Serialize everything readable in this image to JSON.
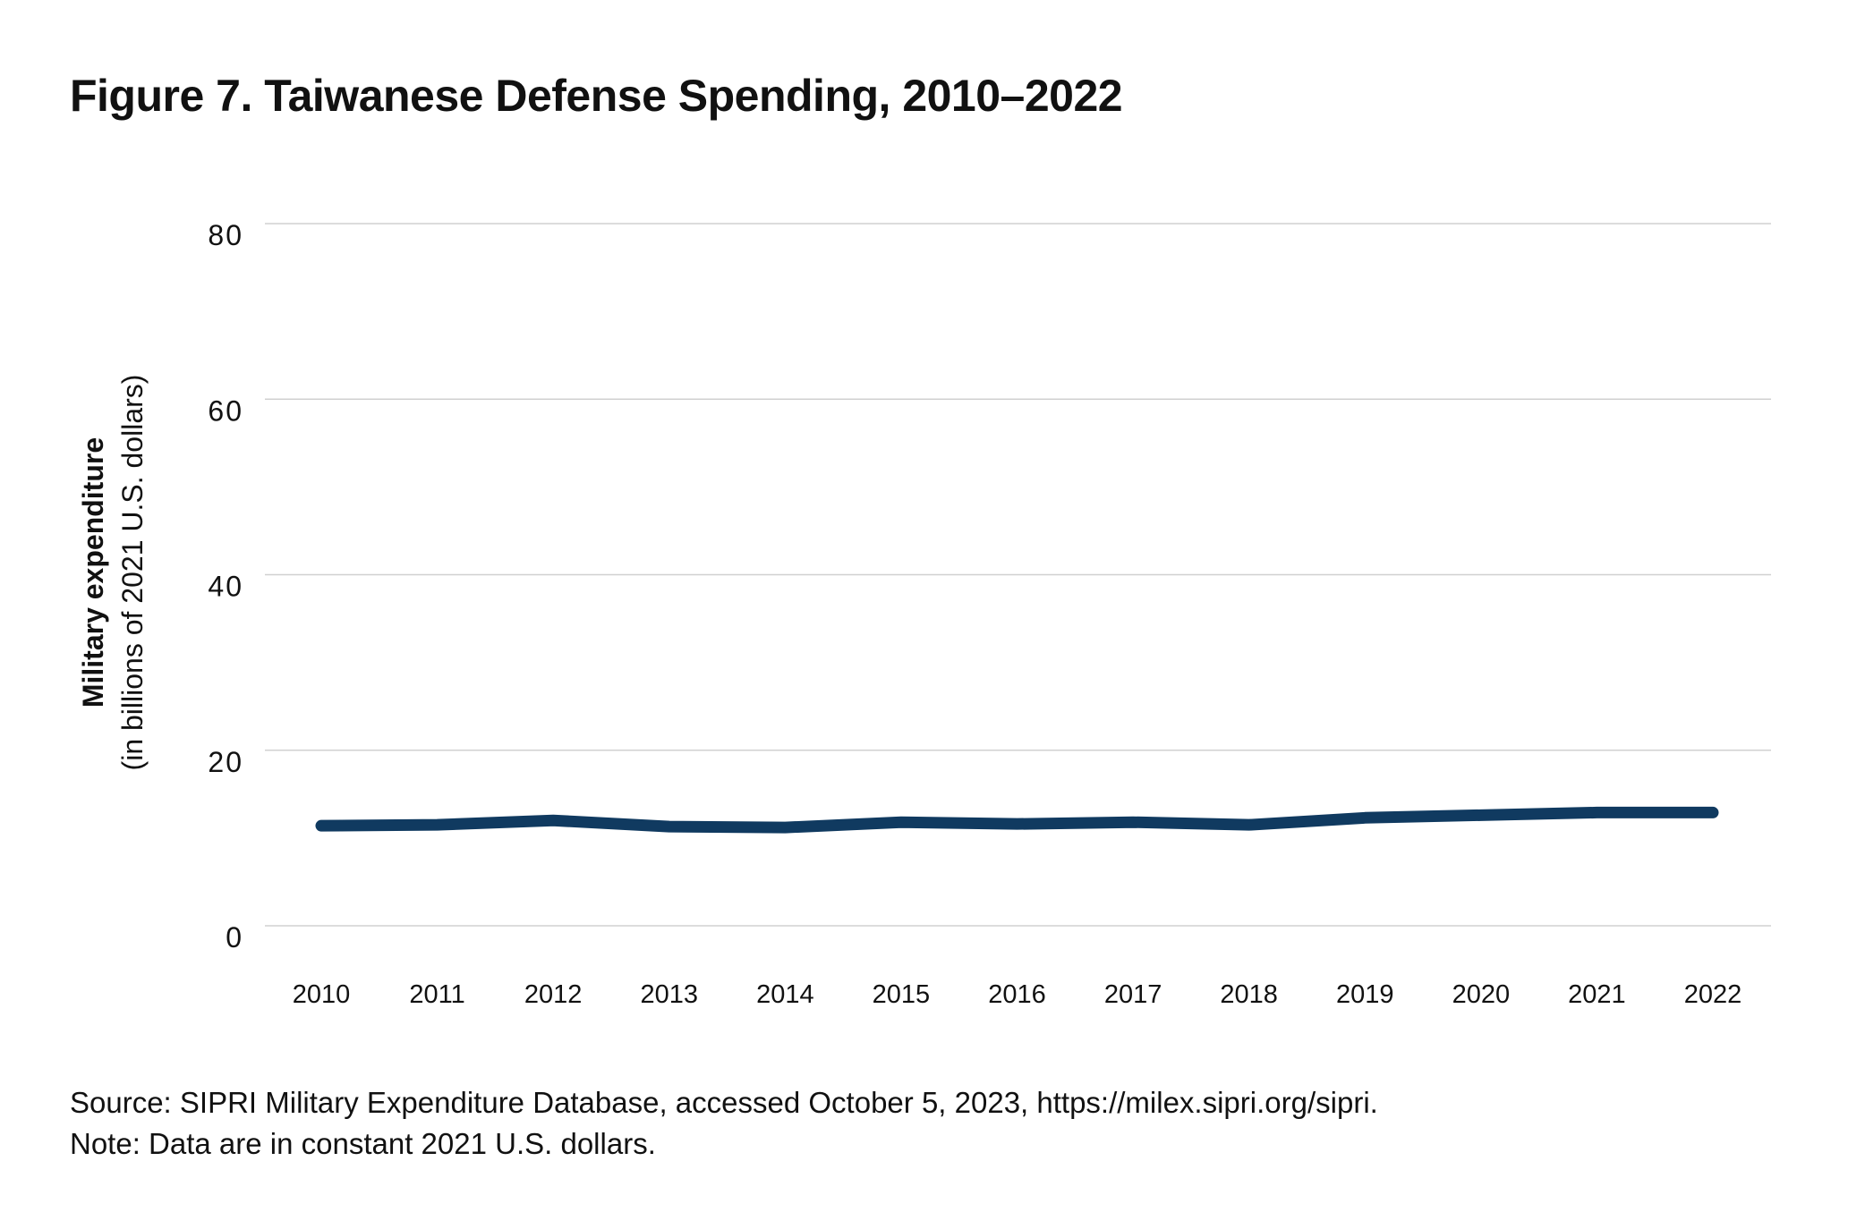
{
  "title": "Figure 7. Taiwanese Defense Spending, 2010–2022",
  "chart_data": {
    "type": "line",
    "title": "Figure 7. Taiwanese Defense Spending, 2010–2022",
    "ylabel_bold": "Military expenditure",
    "ylabel_sub": "(in billions of 2021 U.S. dollars)",
    "xlabel": "",
    "ylim": [
      0,
      80
    ],
    "yticks": [
      0,
      20,
      40,
      60,
      80
    ],
    "grid": "horizontal",
    "x": [
      "2010",
      "2011",
      "2012",
      "2013",
      "2014",
      "2015",
      "2016",
      "2017",
      "2018",
      "2019",
      "2020",
      "2021",
      "2022"
    ],
    "series": [
      {
        "values": [
          11.4,
          11.5,
          12.0,
          11.3,
          11.2,
          11.8,
          11.6,
          11.8,
          11.5,
          12.3,
          12.6,
          12.9,
          12.9
        ],
        "color": "#103a60"
      }
    ]
  },
  "footer": {
    "source": "Source: SIPRI Military Expenditure Database, accessed October 5, 2023, https://milex.sipri.org/sipri.",
    "note": "Note: Data are in constant 2021 U.S. dollars."
  }
}
